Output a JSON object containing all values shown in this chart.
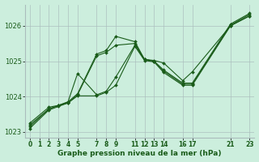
{
  "title": "Graphe pression niveau de la mer (hPa)",
  "background_color": "#cceedd",
  "grid_color": "#aabcbc",
  "line_color": "#1a5c1a",
  "xlim": [
    -0.5,
    23.5
  ],
  "ylim": [
    1022.85,
    1026.6
  ],
  "xticks": [
    0,
    1,
    2,
    3,
    4,
    5,
    7,
    8,
    9,
    11,
    12,
    13,
    14,
    16,
    17,
    21,
    23
  ],
  "yticks": [
    1023,
    1024,
    1025,
    1026
  ],
  "series": [
    {
      "x": [
        0,
        2,
        3,
        4,
        5,
        7,
        8,
        9,
        11,
        12,
        13,
        14,
        16,
        17,
        21,
        23
      ],
      "y": [
        1023.25,
        1023.7,
        1023.75,
        1023.85,
        1024.65,
        1024.05,
        1024.15,
        1024.55,
        1025.45,
        1025.05,
        1025.02,
        1024.95,
        1024.45,
        1024.7,
        1026.0,
        1026.28
      ]
    },
    {
      "x": [
        0,
        2,
        3,
        4,
        5,
        7,
        8,
        9,
        11,
        12,
        13,
        14,
        16,
        17,
        21,
        23
      ],
      "y": [
        1023.2,
        1023.65,
        1023.75,
        1023.85,
        1024.08,
        1025.2,
        1025.3,
        1025.7,
        1025.55,
        1025.05,
        1025.0,
        1024.75,
        1024.38,
        1024.38,
        1026.05,
        1026.35
      ]
    },
    {
      "x": [
        0,
        2,
        3,
        4,
        5,
        7,
        8,
        9,
        11,
        12,
        13,
        14,
        16,
        17,
        21,
        23
      ],
      "y": [
        1023.15,
        1023.65,
        1023.75,
        1023.82,
        1024.05,
        1025.15,
        1025.25,
        1025.45,
        1025.5,
        1025.05,
        1025.0,
        1024.72,
        1024.35,
        1024.35,
        1026.02,
        1026.32
      ]
    },
    {
      "x": [
        0,
        2,
        3,
        4,
        5,
        7,
        8,
        9,
        11,
        12,
        13,
        14,
        16,
        17,
        21,
        23
      ],
      "y": [
        1023.1,
        1023.62,
        1023.72,
        1023.82,
        1024.02,
        1024.02,
        1024.12,
        1024.32,
        1025.42,
        1025.02,
        1024.98,
        1024.68,
        1024.32,
        1024.32,
        1026.0,
        1026.28
      ]
    }
  ]
}
